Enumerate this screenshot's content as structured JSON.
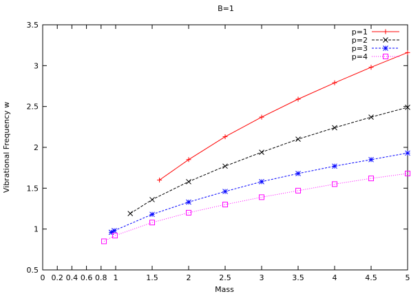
{
  "chart_data": {
    "type": "line",
    "title": "B=1",
    "xlabel": "Mass",
    "ylabel": "Vibrational Frequency w",
    "xlim": [
      0,
      5
    ],
    "ylim": [
      0.5,
      3.5
    ],
    "x_ticks": [
      "0",
      "0.2",
      "0.4",
      "0.6",
      "0.8",
      "1",
      "1.5",
      "2",
      "2.5",
      "3",
      "3.5",
      "4",
      "4.5",
      "5"
    ],
    "y_ticks": [
      "0.5",
      "1",
      "1.5",
      "2",
      "2.5",
      "3",
      "3.5"
    ],
    "grid": false,
    "legend_position": "top-right",
    "series": [
      {
        "name": "p=1",
        "color": "#ff0000",
        "marker": "plus",
        "dash": "solid",
        "x": [
          1.6,
          2.0,
          2.5,
          3.0,
          3.5,
          4.0,
          4.5,
          5.0
        ],
        "y": [
          1.6,
          1.85,
          2.13,
          2.37,
          2.59,
          2.79,
          2.98,
          3.16
        ]
      },
      {
        "name": "p=2",
        "color": "#000000",
        "marker": "cross",
        "dash": "4,2",
        "x": [
          1.2,
          1.5,
          2.0,
          2.5,
          3.0,
          3.5,
          4.0,
          4.5,
          5.0
        ],
        "y": [
          1.19,
          1.36,
          1.58,
          1.77,
          1.94,
          2.1,
          2.24,
          2.37,
          2.49
        ]
      },
      {
        "name": "p=3",
        "color": "#0000ff",
        "marker": "star",
        "dash": "3,2",
        "x": [
          0.94,
          0.98,
          1.5,
          2.0,
          2.5,
          3.0,
          3.5,
          4.0,
          4.5,
          5.0
        ],
        "y": [
          0.96,
          0.98,
          1.18,
          1.33,
          1.46,
          1.58,
          1.68,
          1.77,
          1.85,
          1.93
        ]
      },
      {
        "name": "p=4",
        "color": "#ff00ff",
        "marker": "square",
        "dash": "1,2",
        "x": [
          0.84,
          0.99,
          1.5,
          2.0,
          2.5,
          3.0,
          3.5,
          4.0,
          4.5,
          5.0
        ],
        "y": [
          0.85,
          0.92,
          1.08,
          1.2,
          1.3,
          1.39,
          1.47,
          1.55,
          1.62,
          1.68
        ]
      }
    ]
  }
}
